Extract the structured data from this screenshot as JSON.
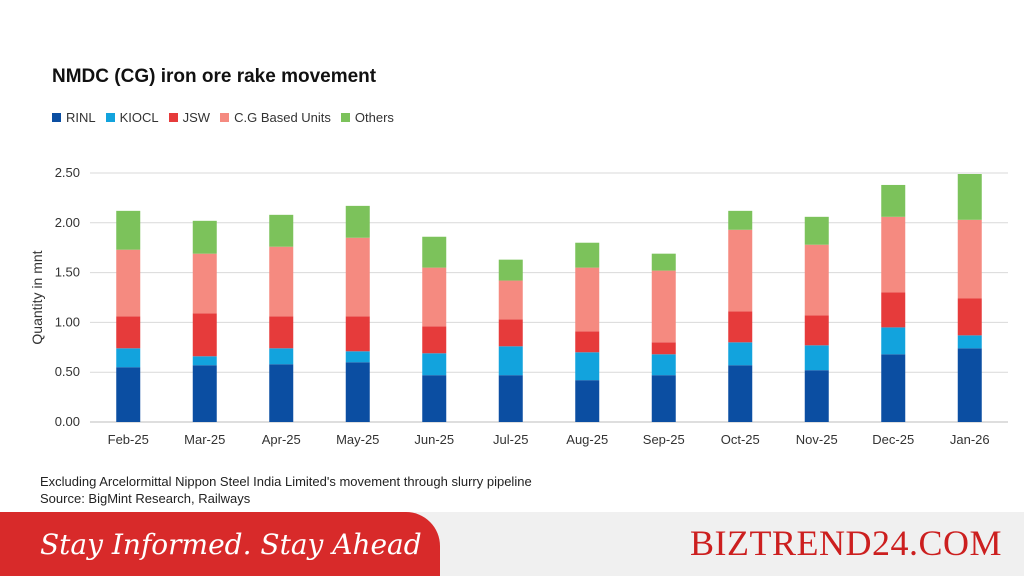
{
  "chart_data": {
    "type": "bar",
    "stacked": true,
    "title": "NMDC (CG) iron ore rake movement",
    "ylabel": "Quantity in mnt",
    "xlabel": "",
    "ylim": [
      0,
      2.5
    ],
    "yticks": [
      "0.00",
      "0.50",
      "1.00",
      "1.50",
      "2.00",
      "2.50"
    ],
    "grid": true,
    "legend_position": "top-left",
    "categories": [
      "Feb-25",
      "Mar-25",
      "Apr-25",
      "May-25",
      "Jun-25",
      "Jul-25",
      "Aug-25",
      "Sep-25",
      "Oct-25",
      "Nov-25",
      "Dec-25",
      "Jan-26"
    ],
    "series": [
      {
        "name": "RINL",
        "color": "#0b4ea2",
        "values": [
          0.55,
          0.57,
          0.58,
          0.6,
          0.47,
          0.47,
          0.42,
          0.47,
          0.57,
          0.52,
          0.68,
          0.74
        ]
      },
      {
        "name": "KIOCL",
        "color": "#12a3dd",
        "values": [
          0.19,
          0.09,
          0.16,
          0.11,
          0.22,
          0.29,
          0.28,
          0.21,
          0.23,
          0.25,
          0.27,
          0.13
        ]
      },
      {
        "name": "JSW",
        "color": "#e63b3b",
        "values": [
          0.32,
          0.43,
          0.32,
          0.35,
          0.27,
          0.27,
          0.21,
          0.12,
          0.31,
          0.3,
          0.35,
          0.37
        ]
      },
      {
        "name": "C.G Based Units",
        "color": "#f58a80",
        "values": [
          0.67,
          0.6,
          0.7,
          0.79,
          0.59,
          0.39,
          0.64,
          0.72,
          0.82,
          0.71,
          0.76,
          0.79
        ]
      },
      {
        "name": "Others",
        "color": "#7cc25b",
        "values": [
          0.39,
          0.33,
          0.32,
          0.32,
          0.31,
          0.21,
          0.25,
          0.17,
          0.19,
          0.28,
          0.32,
          0.46
        ]
      }
    ]
  },
  "footnote": {
    "line1": "Excluding Arcelormittal Nippon Steel India Limited's movement through slurry pipeline",
    "line2": "Source: BigMint Research, Railways"
  },
  "banner": {
    "tagline": "Stay Informed. Stay Ahead",
    "brand": "BIZTREND24.COM",
    "tagline_color": "#d82a2a",
    "brand_color": "#cc1f1f"
  }
}
